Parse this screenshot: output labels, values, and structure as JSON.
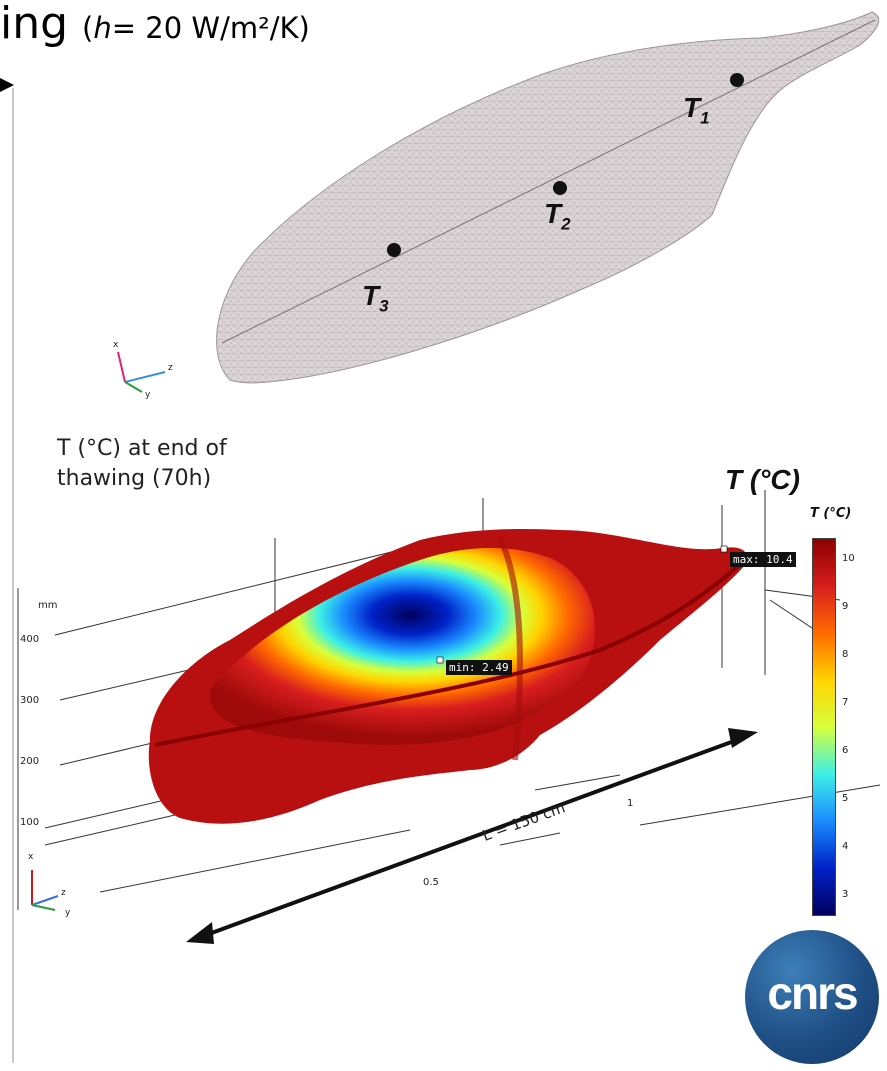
{
  "heading": {
    "text": "ing",
    "param_prefix": "(",
    "param_var": "h",
    "param_rest": "= 20 W/m²/K)"
  },
  "mesh_view": {
    "points": [
      {
        "name": "T",
        "sub": "1"
      },
      {
        "name": "T",
        "sub": "2"
      },
      {
        "name": "T",
        "sub": "3"
      }
    ],
    "axes": {
      "x": "x",
      "y": "y",
      "z": "z"
    }
  },
  "thermal_view": {
    "caption_line1": "T (°C) at end of",
    "caption_line2": "thawing (70h)",
    "big_label": "T (°C)",
    "colorbar_title": "T (°C)",
    "colorbar_ticks": [
      "10",
      "9",
      "8",
      "7",
      "6",
      "5",
      "4",
      "3"
    ],
    "colorbar_colors": [
      "#8b0000",
      "#d81e1e",
      "#ff6a00",
      "#ffd400",
      "#d8ff3a",
      "#3cf0e6",
      "#1a8cff",
      "#0022c8",
      "#00005e"
    ],
    "max_label": "max: 10.4",
    "min_label": "min: 2.49",
    "length_label": "L = 150 cm",
    "axis_unit": "mm",
    "y_ticks": [
      "400",
      "300",
      "200",
      "100"
    ],
    "x_ticks": [
      "0.5",
      "1"
    ],
    "axes": {
      "x": "x",
      "y": "y",
      "z": "z"
    }
  },
  "logo": {
    "text": "cnrs"
  }
}
